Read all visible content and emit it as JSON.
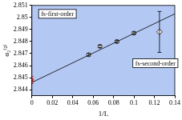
{
  "chart_data": {
    "type": "scatter",
    "x_label": "1/L",
    "y_label": "α₂⁽²⁾",
    "xlim": [
      0,
      0.14
    ],
    "xticks": [
      0,
      0.02,
      0.04,
      0.06,
      0.08,
      0.1,
      0.12,
      0.14
    ],
    "ylim": [
      2.8435,
      2.851
    ],
    "yticks": [
      2.844,
      2.845,
      2.846,
      2.847,
      2.848,
      2.849,
      2.85,
      2.851
    ],
    "grid": false,
    "series": [
      {
        "type": "line",
        "color": "#000000",
        "marker": "none",
        "line_style": "solid",
        "x": [
          0,
          0.14
        ],
        "values": [
          2.8446,
          2.8503
        ]
      },
      {
        "type": "scatter",
        "color": "#000000",
        "marker": "circle",
        "x": [
          0.0556,
          0.0667,
          0.0833,
          0.1
        ],
        "values": [
          2.8469,
          2.8476,
          2.848,
          2.8487
        ],
        "errors": [
          0.0001,
          0.0001,
          0.0001,
          0.0001
        ]
      },
      {
        "type": "scatter",
        "color": "#000000",
        "marker": "diamond",
        "x": [
          0.125
        ],
        "values": [
          2.8488
        ],
        "errors": [
          0.0017
        ]
      },
      {
        "type": "scatter",
        "color": "#e03030",
        "marker": "square",
        "x": [
          0
        ],
        "values": [
          2.8448
        ],
        "errors": [
          0.0003
        ]
      }
    ],
    "annotations": [
      {
        "text": "fs-first-order",
        "x": 0.025,
        "y": 2.8503
      },
      {
        "text": "fs-second-order",
        "x": 0.121,
        "y": 2.8462
      }
    ]
  }
}
